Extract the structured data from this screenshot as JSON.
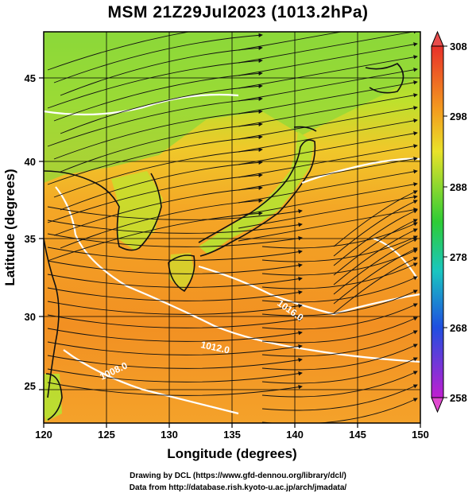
{
  "title": "MSM 21Z29Jul2023 (1013.2hPa)",
  "map": {
    "xlabel": "Longitude (degrees)",
    "ylabel": "Latitude  (degrees)",
    "lon_range": [
      120,
      150
    ],
    "lat_range": [
      22.5,
      48
    ],
    "lon_ticks": [
      "120",
      "125",
      "130",
      "135",
      "140",
      "145",
      "150"
    ],
    "lat_ticks": [
      "25",
      "30",
      "35",
      "40",
      "45"
    ],
    "contour_labels": [
      "1012.0",
      "1016.0",
      "1008.0"
    ],
    "grid": true
  },
  "colorbar": {
    "ticks": [
      "308",
      "298",
      "288",
      "278",
      "268",
      "258"
    ],
    "colors": [
      "#e8302a",
      "#f39b1f",
      "#e9e22a",
      "#2ecc35",
      "#19c6c0",
      "#1f4fe0",
      "#c01fd0"
    ]
  },
  "footer": {
    "line1": "Drawing by DCL (https://www.gfd-dennou.org/library/dcl/)",
    "line2": "Data from http://database.rish.kyoto-u.ac.jp/arch/jmadata/"
  }
}
